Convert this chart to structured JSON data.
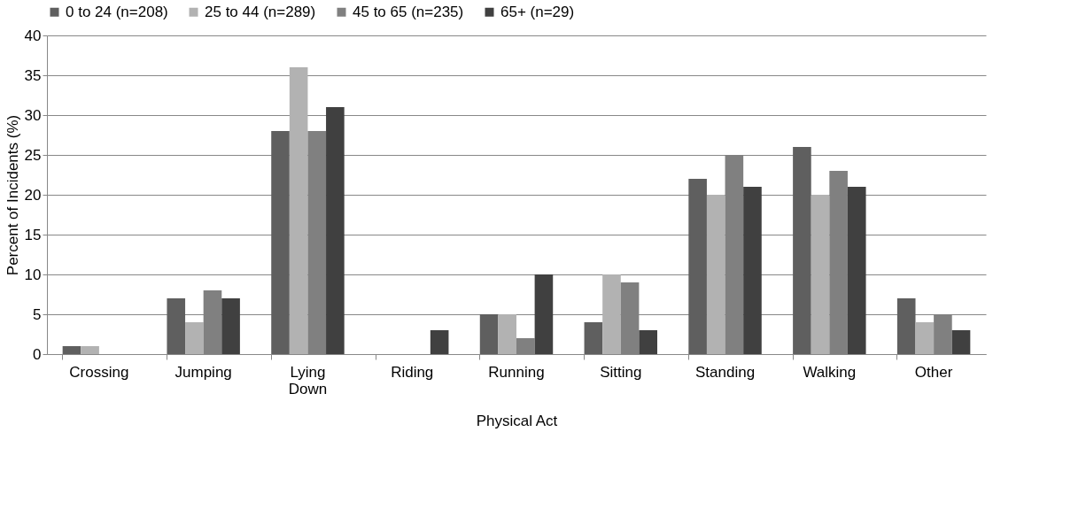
{
  "chart_data": {
    "type": "bar",
    "xlabel": "Physical Act",
    "ylabel": "Percent of Incidents (%)",
    "categories": [
      "Crossing",
      "Jumping",
      "Lying Down",
      "Riding",
      "Running",
      "Sitting",
      "Standing",
      "Walking",
      "Other"
    ],
    "series": [
      {
        "name": "0 to 24 (n=208)",
        "color": "#5f5f5f",
        "values": [
          1,
          7,
          28,
          0,
          5,
          4,
          22,
          26,
          7
        ]
      },
      {
        "name": "25 to 44 (n=289)",
        "color": "#b2b2b2",
        "values": [
          1,
          4,
          36,
          0,
          5,
          10,
          20,
          20,
          4
        ]
      },
      {
        "name": "45 to 65 (n=235)",
        "color": "#808080",
        "values": [
          0,
          8,
          28,
          0,
          2,
          9,
          25,
          23,
          5
        ]
      },
      {
        "name": "65+ (n=29)",
        "color": "#404040",
        "values": [
          0,
          7,
          31,
          3,
          10,
          3,
          21,
          21,
          3
        ]
      }
    ],
    "ylim": [
      0,
      40
    ],
    "yticks": [
      0,
      5,
      10,
      15,
      20,
      25,
      30,
      35,
      40
    ],
    "grid": "y",
    "legend": "top"
  }
}
